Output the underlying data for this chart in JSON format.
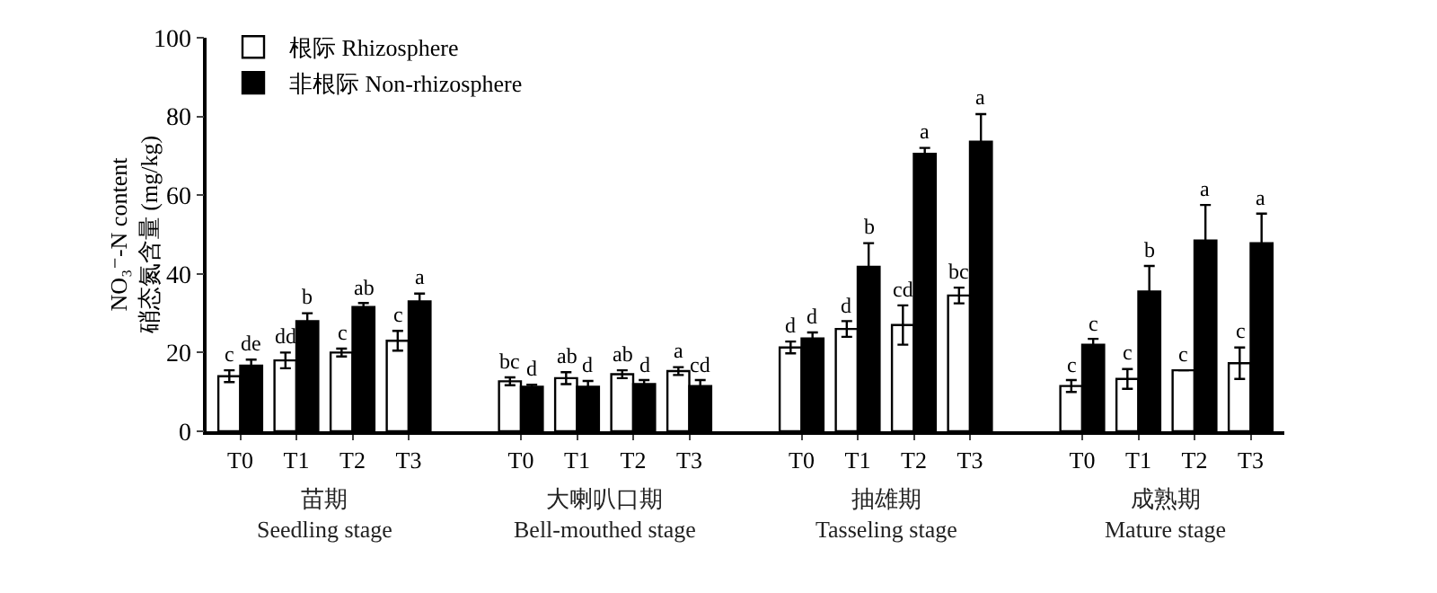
{
  "chart_data": {
    "type": "bar",
    "ylabel": "NO₃⁻-N content\n硝态氮含量 (mg/kg)",
    "categories": [
      "T0",
      "T1",
      "T2",
      "T3",
      null,
      "T0",
      "T1",
      "T2",
      "T3",
      null,
      "T0",
      "T1",
      "T2",
      "T3",
      null,
      "T0",
      "T1",
      "T2",
      "T3"
    ],
    "series": [
      {
        "name": "根际 Rhizosphere",
        "color": "#ffffff",
        "values": [
          14,
          18,
          20,
          23,
          null,
          12.7,
          13.5,
          14.5,
          15.3,
          null,
          21.3,
          26,
          27,
          34.5,
          null,
          11.5,
          13.3,
          15.5,
          17.3
        ],
        "errors": [
          1.5,
          2,
          1,
          2.5,
          null,
          1,
          1.5,
          1,
          1,
          null,
          1.5,
          2,
          5,
          2,
          null,
          1.5,
          2.5,
          0,
          4
        ],
        "value_labels": [
          "c",
          "dd",
          "c",
          "c",
          null,
          "bc",
          "ab",
          "ab",
          "a",
          null,
          "d",
          "d",
          "cd",
          "bc",
          null,
          "c",
          "c",
          "c",
          "c"
        ]
      },
      {
        "name": "非根际 Non-rhizosphere",
        "color": "#000000",
        "values": [
          16.7,
          28,
          31.6,
          33,
          null,
          11.3,
          11.3,
          12,
          11.5,
          null,
          23.6,
          41.8,
          70.5,
          73.6,
          null,
          22,
          35.5,
          48.5,
          47.8
        ],
        "errors": [
          1.5,
          2,
          1,
          2,
          null,
          0.5,
          1.5,
          1,
          1.5,
          null,
          1.5,
          6,
          1.5,
          7,
          null,
          1.5,
          6.5,
          9,
          7.5
        ],
        "value_labels": [
          "de",
          "b",
          "ab",
          "a",
          null,
          "d",
          "d",
          "d",
          "cd",
          null,
          "d",
          "b",
          "a",
          "a",
          null,
          "c",
          "b",
          "a",
          "a"
        ]
      }
    ],
    "annotations": [
      "苗期\nSeedling stage",
      "大喇叭口期\nBell-mouthed stage",
      "抽雄期\nTasseling stage",
      "成熟期\nMature stage"
    ],
    "ylim": [
      0,
      100
    ],
    "yticks": [
      0,
      20,
      40,
      60,
      80,
      100
    ],
    "grid": false,
    "legend": "top left"
  }
}
